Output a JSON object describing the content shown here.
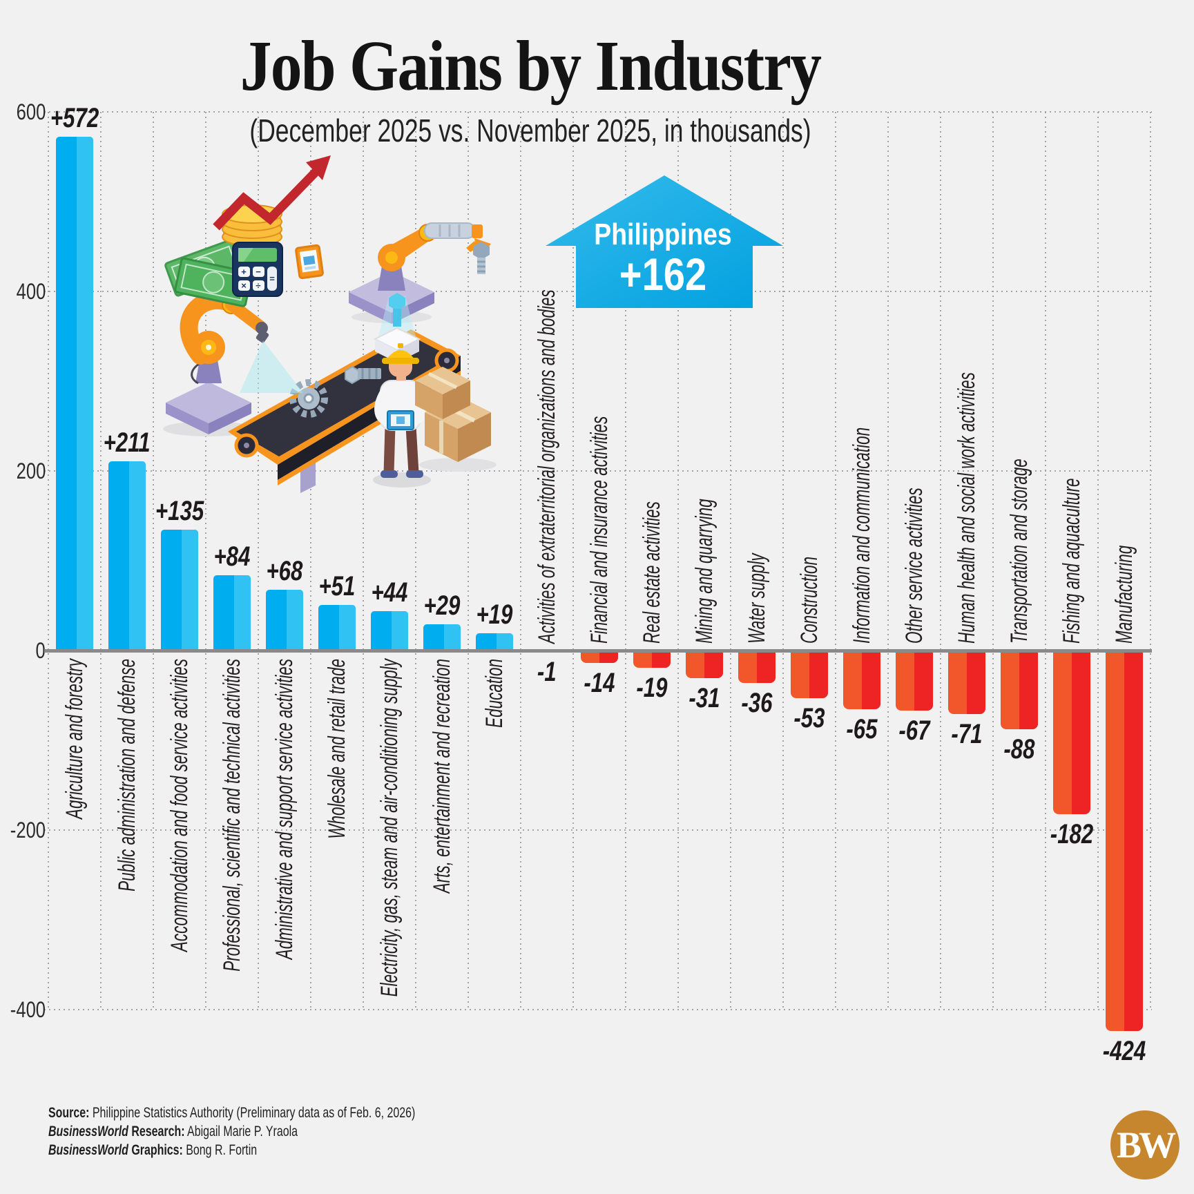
{
  "title": "Job Gains by Industry",
  "subtitle": "(December 2025 vs. November 2025, in thousands)",
  "highlight": {
    "label": "Philippines",
    "value": "+162"
  },
  "y_axis": {
    "tick_labels": [
      "600",
      "400",
      "200",
      "0",
      "-200",
      "-400"
    ],
    "tick_values": [
      600,
      400,
      200,
      0,
      -200,
      -400
    ]
  },
  "chart_data": {
    "type": "bar",
    "title": "Job Gains by Industry",
    "subtitle": "(December 2025 vs. November 2025, in thousands)",
    "unit": "thousands of jobs, month-on-month change",
    "categories": [
      "Agriculture and forestry",
      "Public administration and defense",
      "Accommodation and food service activities",
      "Professional, scientific and technical activities",
      "Administrative and support service activities",
      "Wholesale and retail trade",
      "Electricity, gas, steam and air-conditioning supply",
      "Arts, entertainment and recreation",
      "Education",
      "Activities of extraterritorial organizations and bodies",
      "Financial and insurance activities",
      "Real estate activities",
      "Mining and quarrying",
      "Water supply",
      "Construction",
      "Information and communication",
      "Other service activities",
      "Human health and social work activities",
      "Transportation and storage",
      "Fishing and aquaculture",
      "Manufacturing"
    ],
    "values": [
      572,
      211,
      135,
      84,
      68,
      51,
      44,
      29,
      19,
      -1,
      -14,
      -19,
      -31,
      -36,
      -53,
      -65,
      -67,
      -71,
      -88,
      -182,
      -424
    ],
    "value_labels": [
      "+572",
      "+211",
      "+135",
      "+84",
      "+68",
      "+51",
      "+44",
      "+29",
      "+19",
      "-1",
      "-14",
      "-19",
      "-31",
      "-36",
      "-53",
      "-65",
      "-67",
      "-71",
      "-88",
      "-182",
      "-424"
    ],
    "national_total": {
      "label": "Philippines",
      "value": 162
    },
    "ylim": [
      -450,
      600
    ],
    "grid": "dotted",
    "legend": "none",
    "colors": {
      "positive": "#00AEEF",
      "positive_light": "#2FC2F2",
      "negative": "#F2572B",
      "negative_bright": "#EE2424",
      "arrow": "#18ADE8",
      "axis": "#8A8A8A",
      "logo": "#C6862E"
    }
  },
  "footer": {
    "source_label": "Source:",
    "source_text": " Philippine Statistics Authority (Preliminary data as of Feb. 6, 2026)",
    "research_brand": "BusinessWorld",
    "research_label": " Research:",
    "research_text": " Abigail Marie P. Yraola",
    "graphics_brand": "BusinessWorld",
    "graphics_label": " Graphics:",
    "graphics_text": " Bong R. Fortin"
  },
  "logo_text": "BW"
}
